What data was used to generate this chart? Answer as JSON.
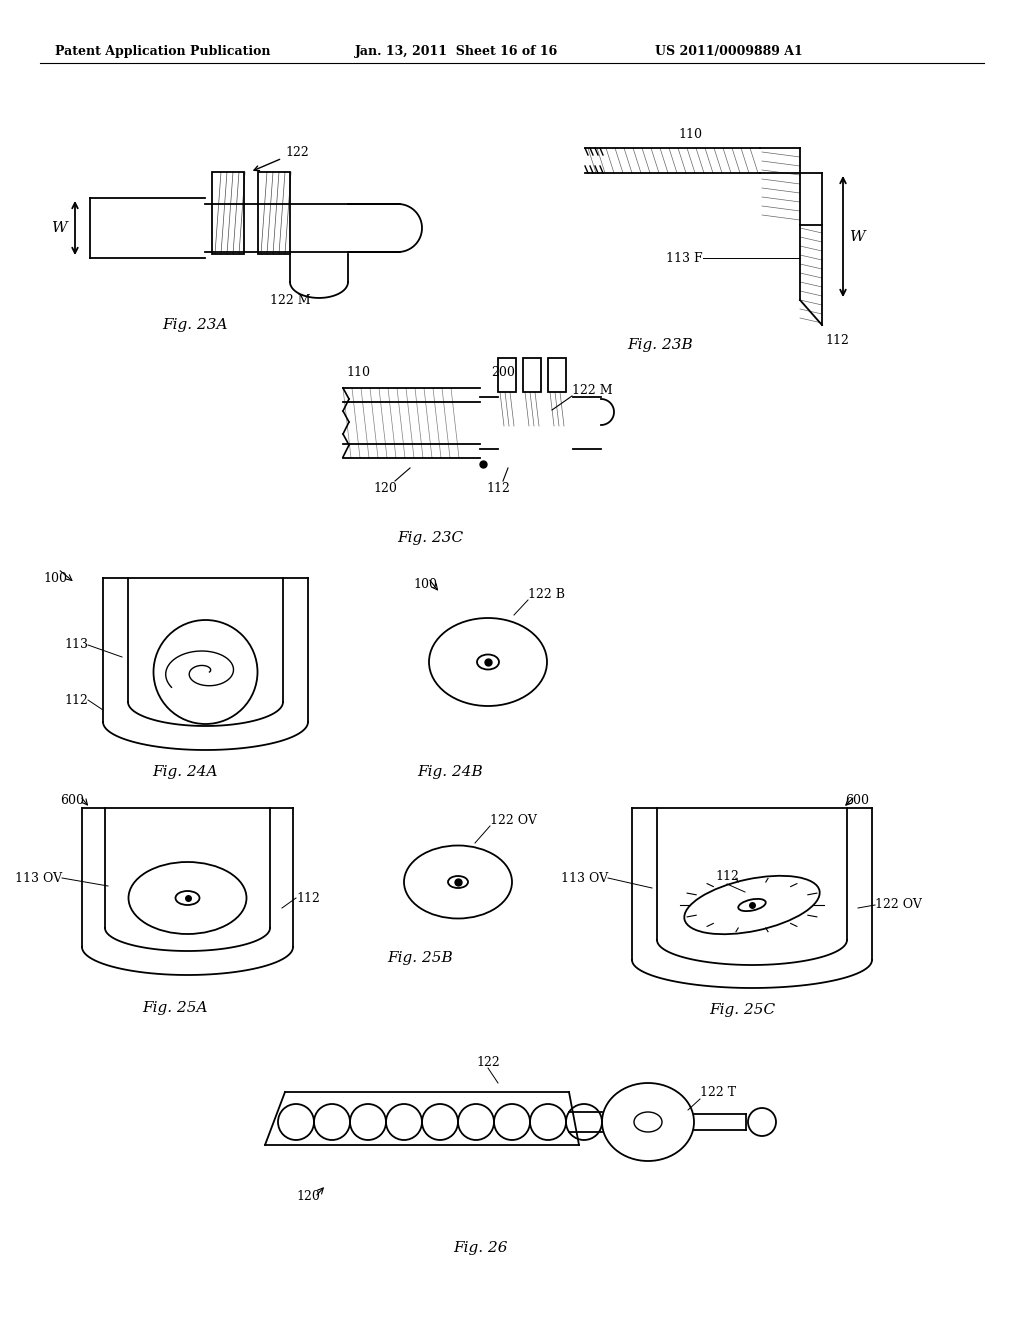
{
  "bg_color": "#ffffff",
  "header_left": "Patent Application Publication",
  "header_mid": "Jan. 13, 2011  Sheet 16 of 16",
  "header_right": "US 2011/0009889 A1",
  "fig23A_label": "Fig. 23A",
  "fig23B_label": "Fig. 23B",
  "fig23C_label": "Fig. 23C",
  "fig24A_label": "Fig. 24A",
  "fig24B_label": "Fig. 24B",
  "fig25A_label": "Fig. 25A",
  "fig25B_label": "Fig. 25B",
  "fig25C_label": "Fig. 25C",
  "fig26_label": "Fig. 26"
}
